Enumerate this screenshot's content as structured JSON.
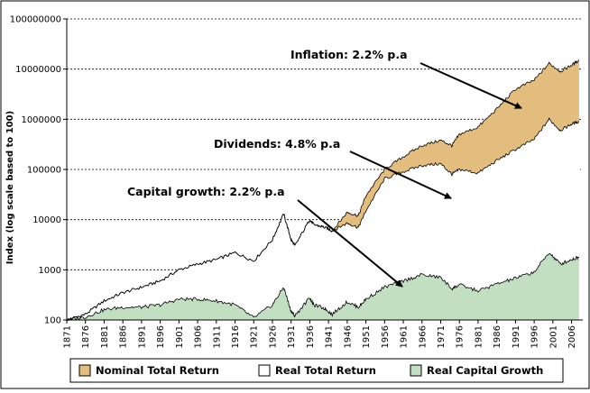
{
  "chart_data": {
    "type": "area",
    "ylabel": "Index (log scale based to 100)",
    "yscale": "log",
    "ylim": [
      100,
      100000000
    ],
    "xlim": [
      1871,
      2009
    ],
    "ytick_labels": [
      "100",
      "1000",
      "10000",
      "100000",
      "1000000",
      "10000000",
      "100000000"
    ],
    "ytick_values": [
      100,
      1000,
      10000,
      100000,
      1000000,
      10000000,
      100000000
    ],
    "xtick_labels": [
      "1871",
      "1876",
      "1881",
      "1886",
      "1891",
      "1896",
      "1901",
      "1906",
      "1911",
      "1916",
      "1921",
      "1926",
      "1931",
      "1936",
      "1941",
      "1946",
      "1951",
      "1956",
      "1961",
      "1966",
      "1971",
      "1976",
      "1981",
      "1986",
      "1991",
      "1996",
      "2001",
      "2006"
    ],
    "xtick_values": [
      1871,
      1876,
      1881,
      1886,
      1891,
      1896,
      1901,
      1906,
      1911,
      1916,
      1921,
      1926,
      1931,
      1936,
      1941,
      1946,
      1951,
      1956,
      1961,
      1966,
      1971,
      1976,
      1981,
      1986,
      1991,
      1996,
      2001,
      2006
    ],
    "grid": "horizontal dashed",
    "legend_position": "bottom",
    "series": [
      {
        "name": "Nominal Total Return",
        "color": "#e3bd7e",
        "x": [
          1871,
          1876,
          1881,
          1886,
          1891,
          1896,
          1901,
          1906,
          1911,
          1916,
          1921,
          1926,
          1929,
          1931,
          1932,
          1936,
          1937,
          1940,
          1942,
          1946,
          1949,
          1951,
          1956,
          1961,
          1966,
          1971,
          1974,
          1976,
          1981,
          1986,
          1991,
          1996,
          2000,
          2003,
          2006,
          2008
        ],
        "y": [
          100,
          130,
          240,
          350,
          450,
          600,
          1000,
          1300,
          1600,
          2200,
          1500,
          4000,
          13000,
          4000,
          3000,
          10000,
          8000,
          7000,
          6000,
          14000,
          12000,
          30000,
          100000,
          180000,
          300000,
          380000,
          300000,
          500000,
          700000,
          1600000,
          4000000,
          6000000,
          13000000,
          9000000,
          12000000,
          15000000
        ]
      },
      {
        "name": "Real Total Return",
        "color": "#ffffff",
        "x": [
          1871,
          1876,
          1881,
          1886,
          1891,
          1896,
          1901,
          1906,
          1911,
          1916,
          1921,
          1926,
          1929,
          1931,
          1932,
          1936,
          1937,
          1940,
          1942,
          1946,
          1949,
          1951,
          1956,
          1961,
          1966,
          1971,
          1974,
          1976,
          1981,
          1986,
          1991,
          1996,
          2000,
          2003,
          2006,
          2008
        ],
        "y": [
          100,
          130,
          240,
          350,
          450,
          600,
          1000,
          1300,
          1600,
          2200,
          1500,
          4000,
          13000,
          4000,
          3000,
          10000,
          8000,
          7000,
          6000,
          8500,
          7000,
          15000,
          65000,
          90000,
          120000,
          130000,
          80000,
          100000,
          85000,
          150000,
          250000,
          400000,
          1000000,
          600000,
          800000,
          900000
        ]
      },
      {
        "name": "Real Capital Growth",
        "color": "#c2dfc2",
        "x": [
          1871,
          1876,
          1881,
          1886,
          1891,
          1896,
          1901,
          1906,
          1911,
          1916,
          1921,
          1926,
          1929,
          1931,
          1932,
          1936,
          1937,
          1940,
          1942,
          1946,
          1949,
          1951,
          1956,
          1961,
          1966,
          1971,
          1974,
          1976,
          1981,
          1986,
          1991,
          1996,
          2000,
          2003,
          2006,
          2008
        ],
        "y": [
          100,
          115,
          160,
          180,
          180,
          200,
          260,
          260,
          240,
          200,
          110,
          200,
          450,
          150,
          120,
          280,
          200,
          170,
          130,
          230,
          180,
          260,
          450,
          600,
          800,
          700,
          420,
          500,
          380,
          520,
          680,
          900,
          2200,
          1300,
          1600,
          1800
        ]
      }
    ],
    "annotations": [
      {
        "text": "Inflation: 2.2% p.a"
      },
      {
        "text": "Dividends: 4.8% p.a"
      },
      {
        "text": "Capital growth: 2.2% p.a"
      }
    ]
  }
}
